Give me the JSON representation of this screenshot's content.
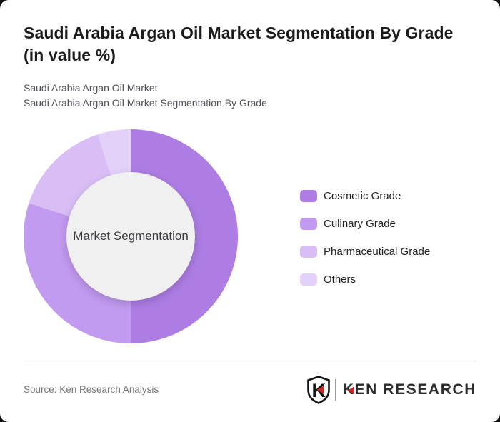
{
  "page": {
    "background_color": "#0d0d0d",
    "card_color": "#ffffff"
  },
  "header": {
    "title": "Saudi Arabia Argan Oil Market Segmentation By Grade (in value %)",
    "subtitle_line1": "Saudi Arabia Argan Oil Market",
    "subtitle_line2": "Saudi Arabia Argan Oil Market Segmentation By Grade"
  },
  "chart_data": {
    "type": "pie",
    "style": "donut",
    "title": "Saudi Arabia Argan Oil Market Segmentation By Grade (in value %)",
    "center_label": "Market Segmentation",
    "categories": [
      "Cosmetic Grade",
      "Culinary Grade",
      "Pharmaceutical Grade",
      "Others"
    ],
    "values": [
      50,
      30,
      15,
      5
    ],
    "unit": "%",
    "colors": [
      "#ad7de4",
      "#c29af0",
      "#d9bef5",
      "#e3d1f9"
    ],
    "hole_color": "#f0f0f1",
    "start_angle_deg": 0,
    "direction": "clockwise",
    "legend_position": "right",
    "data_labels_shown": false
  },
  "footer": {
    "source_text": "Source: Ken Research Analysis",
    "logo_shield_letter": "K",
    "logo_wordmark_first_letter": "K",
    "logo_wordmark_rest": "EN RESEARCH",
    "logo_accent_color": "#c62828",
    "logo_text_color": "#2d2d2d"
  }
}
